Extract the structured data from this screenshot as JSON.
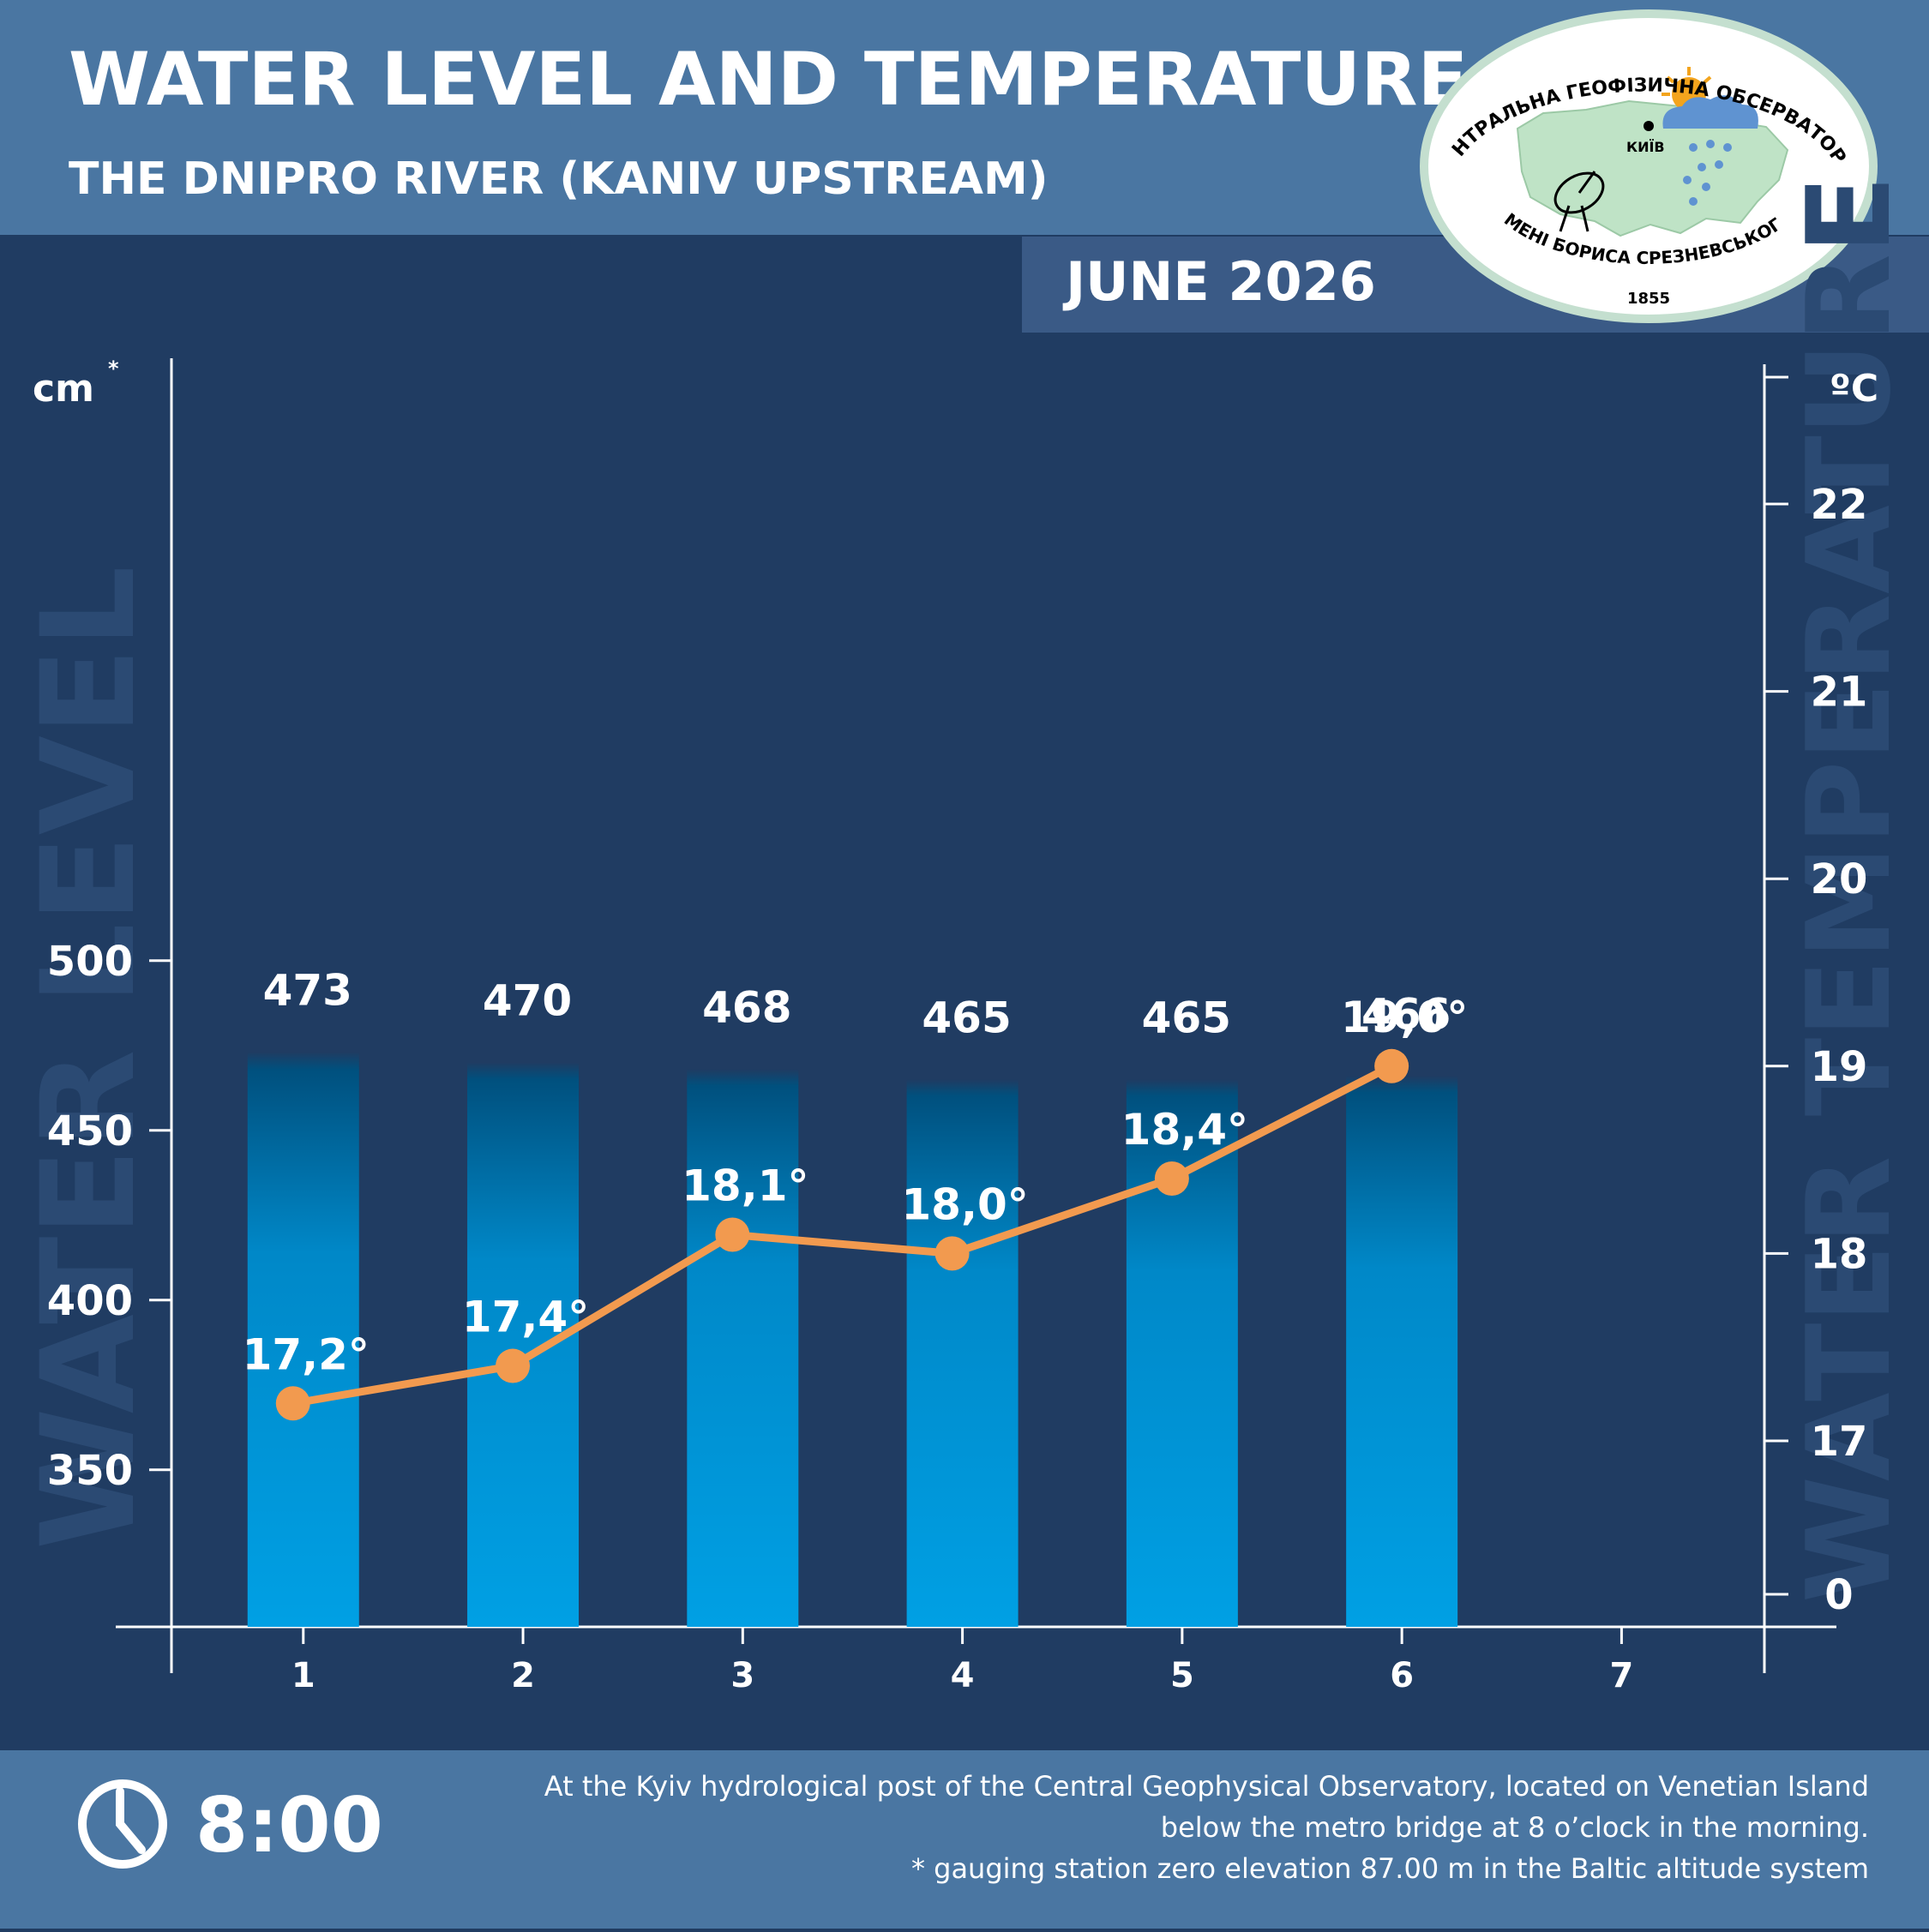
{
  "header": {
    "title": "WATER LEVEL AND TEMPERATURE",
    "subtitle": "THE DNIPRO RIVER (KANIV UPSTREAM)",
    "period": "JUNE 2026"
  },
  "logo": {
    "arc_top": "ЦЕНТРАЛЬНА ГЕОФІЗИЧНА ОБСЕРВАТОРІЯ",
    "arc_bottom": "ІМЕНІ БОРИСА СРЕЗНЕВСЬКОГО",
    "year": "1855",
    "city": "КИЇВ"
  },
  "colors": {
    "header_bg": "#4a76a2",
    "chart_bg": "#203c62",
    "period_bg": "#3a5a86",
    "bar_top": "#00507e",
    "bar_bottom": "#00a0e4",
    "line": "#f29a4f",
    "watermark": "#2b4a73",
    "text": "#ffffff"
  },
  "chart_data": {
    "type": "bar",
    "categories": [
      "1",
      "2",
      "3",
      "4",
      "5",
      "6",
      "7"
    ],
    "y_left_unit": "cm",
    "y_left_unit_mark": "*",
    "y_left_ticks": [
      "500",
      "450",
      "400",
      "350"
    ],
    "y_left_watermark": "WATER LEVEL",
    "y_right_unit": "ºC",
    "y_right_ticks": [
      "22",
      "21",
      "20",
      "19",
      "18",
      "17",
      "0"
    ],
    "y_right_watermark": "WATER TEMPERATURE",
    "series": [
      {
        "name": "Water level",
        "unit": "cm",
        "values": [
          473,
          470,
          468,
          465,
          465,
          466,
          null
        ],
        "labels": [
          "473",
          "470",
          "468",
          "465",
          "465",
          "466",
          ""
        ]
      },
      {
        "name": "Water temperature",
        "unit": "ºC",
        "values": [
          17.2,
          17.4,
          18.1,
          18.0,
          18.4,
          19.0,
          null
        ],
        "labels": [
          "17,2°",
          "17,4°",
          "18,1°",
          "18,0°",
          "18,4°",
          "19,0°",
          ""
        ]
      }
    ]
  },
  "footer": {
    "time": "8:00",
    "note_line1": "At the Kyiv hydrological post of the Central Geophysical Observatory, located on Venetian Island",
    "note_line2": "below the metro bridge  at 8 o’clock in the morning.",
    "note_line3": "* gauging station zero elevation 87.00 m in the Baltic altitude system"
  }
}
